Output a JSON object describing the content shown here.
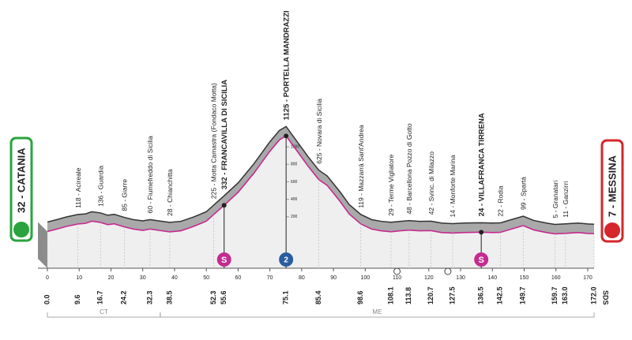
{
  "chart_data": {
    "type": "profile",
    "xlim": [
      0,
      172
    ],
    "ylim": [
      0,
      1200
    ],
    "xticks": [
      0,
      10,
      20,
      30,
      40,
      50,
      60,
      70,
      80,
      90,
      100,
      110,
      120,
      130,
      140,
      150,
      160,
      170
    ],
    "yticks": [
      200,
      400,
      600,
      800,
      1000
    ],
    "profile_color": "#c42b8f",
    "profile": {
      "km": [
        0,
        3,
        6,
        9.6,
        12,
        14,
        16.7,
        19,
        21,
        24.2,
        27,
        30,
        32.3,
        35,
        38.5,
        42,
        46,
        50,
        52.3,
        55.6,
        60,
        65,
        70,
        73,
        75.1,
        78,
        82,
        85.4,
        88,
        92,
        95,
        98.6,
        102,
        105,
        108.1,
        111,
        113.8,
        117,
        120.7,
        124,
        127.5,
        131,
        134,
        136.5,
        140,
        142.5,
        146,
        149.7,
        153,
        157,
        159.7,
        163,
        167,
        170,
        172
      ],
      "elevation": [
        32,
        60,
        90,
        118,
        125,
        150,
        136,
        110,
        120,
        85,
        60,
        45,
        60,
        45,
        28,
        40,
        90,
        150,
        225,
        332,
        480,
        700,
        950,
        1080,
        1125,
        980,
        780,
        625,
        560,
        380,
        230,
        119,
        60,
        40,
        29,
        40,
        48,
        40,
        42,
        20,
        14,
        20,
        22,
        24,
        20,
        22,
        60,
        99,
        50,
        20,
        5,
        11,
        20,
        10,
        7
      ]
    },
    "start": {
      "label": "32 - CATANIA",
      "elevation": 32,
      "km": {
        "value": 0,
        "label": "0.0"
      }
    },
    "finish": {
      "label": "7 - MESSINA",
      "elevation": 7,
      "km": {
        "value": 172,
        "label": "172.0"
      }
    },
    "waypoints": [
      {
        "label": "118 - Acireale",
        "elevation": 118,
        "km": 9.6
      },
      {
        "label": "136 - Guardia",
        "elevation": 136,
        "km": 16.7
      },
      {
        "label": "85 - Giarre",
        "elevation": 85,
        "km": 24.2
      },
      {
        "label": "60 - Fiumefreddo di Sicilia",
        "elevation": 60,
        "km": 32.3
      },
      {
        "label": "28 - Chianchitta",
        "elevation": 28,
        "km": 38.5
      },
      {
        "label": "225 - Motta Camastra (Fondaco Motta)",
        "elevation": 225,
        "km": 52.3
      },
      {
        "label": "332 - FRANCAVILLA DI SICILIA",
        "elevation": 332,
        "km": 55.6,
        "bold": true
      },
      {
        "label": "1125 - PORTELLA MANDRAZZI",
        "elevation": 1125,
        "km": 75.1,
        "bold": true
      },
      {
        "label": "625 - Novara di Sicilia",
        "elevation": 625,
        "km": 85.4
      },
      {
        "label": "119 - Mazzarrà Sant'Andrea",
        "elevation": 119,
        "km": 98.6
      },
      {
        "label": "29 - Terme Vigliatore",
        "elevation": 29,
        "km": 108.1
      },
      {
        "label": "48 - Barcellona Pozzo di Gotto",
        "elevation": 48,
        "km": 113.8
      },
      {
        "label": "42 - Svinc. di Milazzo",
        "elevation": 42,
        "km": 120.7
      },
      {
        "label": "14 - Monforte Marina",
        "elevation": 14,
        "km": 127.5
      },
      {
        "label": "24 - VILLAFRANCA TIRRENA",
        "elevation": 24,
        "km": 136.5,
        "bold": true
      },
      {
        "label": "22 - Rodia",
        "elevation": 22,
        "km": 142.5
      },
      {
        "label": "99 - Spartà",
        "elevation": 99,
        "km": 149.7
      },
      {
        "label": "5 - Granatari",
        "elevation": 5,
        "km": 159.7
      },
      {
        "label": "11 - Ganzirri",
        "elevation": 11,
        "km": {
          "value": 163,
          "label": "163.0"
        }
      }
    ],
    "sprints": [
      {
        "km": 55.6,
        "label": "S"
      },
      {
        "km": 136.5,
        "label": "S"
      }
    ],
    "kom": [
      {
        "km": 75.1,
        "label": "2"
      }
    ],
    "provinces": [
      {
        "label": "CT",
        "from": 0,
        "to": 35.5
      },
      {
        "label": "ME",
        "from": 35.5,
        "to": 172
      }
    ],
    "logo": "SDS"
  }
}
